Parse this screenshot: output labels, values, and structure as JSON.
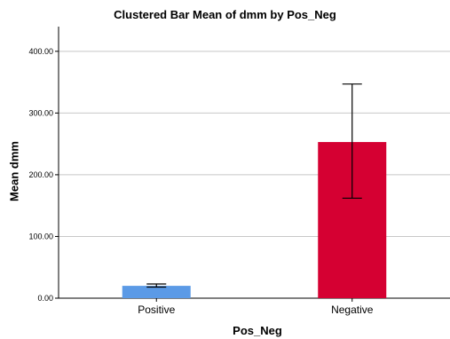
{
  "chart_data": {
    "type": "bar",
    "title": "Clustered Bar Mean of dmm by Pos_Neg",
    "xlabel": "Pos_Neg",
    "ylabel": "Mean dmm",
    "categories": [
      "Positive",
      "Negative"
    ],
    "values": [
      20,
      253
    ],
    "error_low": [
      18,
      162
    ],
    "error_high": [
      23,
      347
    ],
    "colors": [
      "#5b9ae6",
      "#d50032"
    ],
    "ylim": [
      0,
      440
    ],
    "yticks": [
      0,
      100,
      200,
      300,
      400
    ],
    "ytick_labels": [
      "0.00",
      "100.00",
      "200.00",
      "300.00",
      "400.00"
    ],
    "grid": true,
    "legend": "none"
  }
}
